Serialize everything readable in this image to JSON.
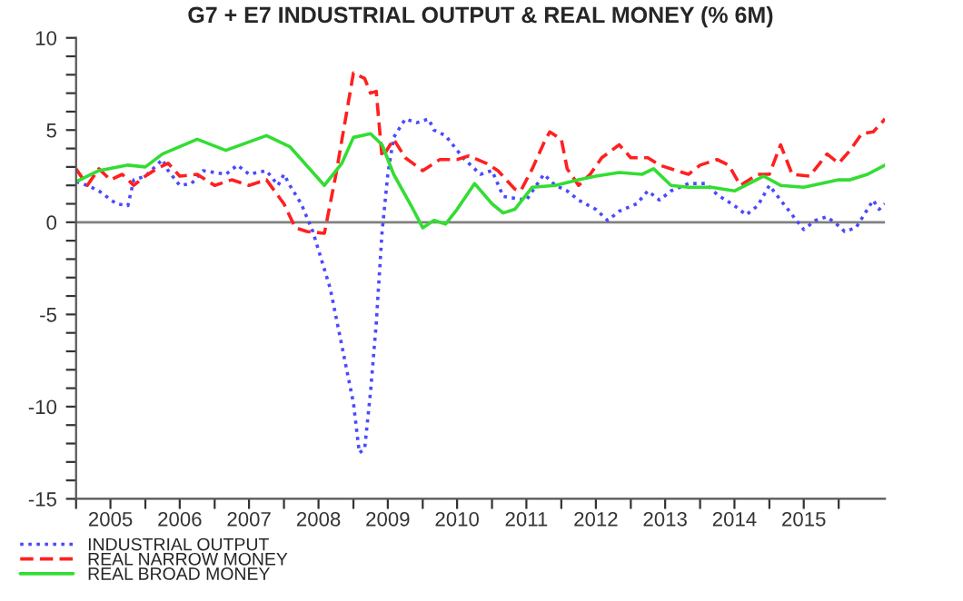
{
  "chart_data": {
    "type": "line",
    "title": "G7 + E7 INDUSTRIAL OUTPUT & REAL MONEY (% 6M)",
    "xlim": [
      "2005-01",
      "2016-09"
    ],
    "ylim": [
      -15,
      10
    ],
    "xticks": [
      {
        "value": "2005-01",
        "label": null
      },
      {
        "value": "2005-07",
        "label": "2005"
      },
      {
        "value": "2006-01",
        "label": null
      },
      {
        "value": "2006-07",
        "label": "2006"
      },
      {
        "value": "2007-01",
        "label": null
      },
      {
        "value": "2007-07",
        "label": "2007"
      },
      {
        "value": "2008-01",
        "label": null
      },
      {
        "value": "2008-07",
        "label": "2008"
      },
      {
        "value": "2009-01",
        "label": null
      },
      {
        "value": "2009-07",
        "label": "2009"
      },
      {
        "value": "2010-01",
        "label": null
      },
      {
        "value": "2010-07",
        "label": "2010"
      },
      {
        "value": "2011-01",
        "label": null
      },
      {
        "value": "2011-07",
        "label": "2011"
      },
      {
        "value": "2012-01",
        "label": null
      },
      {
        "value": "2012-07",
        "label": "2012"
      },
      {
        "value": "2013-01",
        "label": null
      },
      {
        "value": "2013-07",
        "label": "2013"
      },
      {
        "value": "2014-01",
        "label": null
      },
      {
        "value": "2014-07",
        "label": "2014"
      },
      {
        "value": "2015-01",
        "label": null
      },
      {
        "value": "2015-07",
        "label": "2015"
      },
      {
        "value": "2016-01",
        "label": null
      }
    ],
    "yticks": [
      -15,
      {
        "value": -14,
        "label": null
      },
      {
        "value": -13,
        "label": null
      },
      {
        "value": -12,
        "label": null
      },
      {
        "value": -11,
        "label": null
      },
      -10,
      {
        "value": -9,
        "label": null
      },
      {
        "value": -8,
        "label": null
      },
      {
        "value": -7,
        "label": null
      },
      {
        "value": -6,
        "label": null
      },
      -5,
      {
        "value": -4,
        "label": null
      },
      {
        "value": -3,
        "label": null
      },
      {
        "value": -2,
        "label": null
      },
      {
        "value": -1,
        "label": null
      },
      0,
      {
        "value": 1,
        "label": null
      },
      {
        "value": 2,
        "label": null
      },
      {
        "value": 3,
        "label": null
      },
      {
        "value": 4,
        "label": null
      },
      5,
      {
        "value": 6,
        "label": null
      },
      {
        "value": 7,
        "label": null
      },
      {
        "value": 8,
        "label": null
      },
      {
        "value": 9,
        "label": null
      },
      10
    ],
    "grid": false,
    "legend": "bottom left",
    "ref_lines": [
      {
        "axis": "y",
        "value": 0,
        "color": "#808080"
      }
    ],
    "series": [
      {
        "name": "INDUSTRIAL OUTPUT",
        "color": "#4a4aff",
        "line_style": "dotted",
        "x": [
          "2005-01",
          "2005-03",
          "2005-05",
          "2005-08",
          "2005-10",
          "2005-11",
          "2006-01",
          "2006-04",
          "2006-05",
          "2006-07",
          "2006-09",
          "2006-11",
          "2007-03",
          "2007-05",
          "2007-07",
          "2007-10",
          "2007-12",
          "2008-01",
          "2008-02",
          "2008-04",
          "2008-06",
          "2008-09",
          "2008-11",
          "2009-01",
          "2009-02",
          "2009-03",
          "2009-04",
          "2009-05",
          "2009-06",
          "2009-07",
          "2009-08",
          "2009-10",
          "2009-12",
          "2010-02",
          "2010-03",
          "2010-05",
          "2010-08",
          "2010-10",
          "2010-11",
          "2011-01",
          "2011-03",
          "2011-07",
          "2011-10",
          "2011-12",
          "2012-02",
          "2012-04",
          "2012-07",
          "2012-09",
          "2012-11",
          "2013-02",
          "2013-04",
          "2013-06",
          "2013-08",
          "2013-11",
          "2014-02",
          "2014-04",
          "2014-07",
          "2014-09",
          "2014-11",
          "2015-01",
          "2015-03",
          "2015-05",
          "2015-07",
          "2015-09",
          "2015-11",
          "2016-01",
          "2016-02",
          "2016-04",
          "2016-07",
          "2016-08",
          "2016-09"
        ],
        "values": [
          2.2,
          2.0,
          1.7,
          1.0,
          0.9,
          2.3,
          2.5,
          3.4,
          2.8,
          2.0,
          2.1,
          2.8,
          2.6,
          3.1,
          2.6,
          2.8,
          2.0,
          2.6,
          2.0,
          1.0,
          -0.5,
          -3.6,
          -6.7,
          -9.8,
          -12.5,
          -12.3,
          -9.2,
          -5.5,
          -0.5,
          2.6,
          4.6,
          5.6,
          5.4,
          5.6,
          5.0,
          4.7,
          3.5,
          2.9,
          2.6,
          2.8,
          1.4,
          1.2,
          2.6,
          2.0,
          1.7,
          1.2,
          0.7,
          0.1,
          0.6,
          1.0,
          1.7,
          1.2,
          1.7,
          2.1,
          2.1,
          1.5,
          0.9,
          0.4,
          0.9,
          2.0,
          1.2,
          0.4,
          -0.4,
          0.1,
          0.3,
          -0.2,
          -0.5,
          -0.3,
          1.2,
          0.7,
          1.0
        ]
      },
      {
        "name": "REAL NARROW MONEY",
        "color": "#ff2020",
        "line_style": "dashed",
        "x": [
          "2005-01",
          "2005-03",
          "2005-05",
          "2005-07",
          "2005-09",
          "2005-11",
          "2006-01",
          "2006-03",
          "2006-05",
          "2006-07",
          "2006-10",
          "2007-01",
          "2007-04",
          "2007-07",
          "2007-10",
          "2008-01",
          "2008-03",
          "2008-05",
          "2008-08",
          "2008-10",
          "2009-01",
          "2009-03",
          "2009-04",
          "2009-05",
          "2009-06",
          "2009-08",
          "2009-10",
          "2010-01",
          "2010-04",
          "2010-07",
          "2010-09",
          "2010-12",
          "2011-02",
          "2011-05",
          "2011-06",
          "2011-08",
          "2011-10",
          "2011-11",
          "2012-01",
          "2012-02",
          "2012-04",
          "2012-06",
          "2012-08",
          "2012-11",
          "2013-01",
          "2013-04",
          "2013-06",
          "2013-08",
          "2013-11",
          "2014-01",
          "2014-04",
          "2014-06",
          "2014-08",
          "2014-11",
          "2015-01",
          "2015-03",
          "2015-05",
          "2015-08",
          "2015-11",
          "2016-01",
          "2016-03",
          "2016-05",
          "2016-07",
          "2016-09"
        ],
        "values": [
          2.9,
          2.0,
          2.9,
          2.3,
          2.6,
          2.0,
          2.5,
          2.9,
          3.2,
          2.5,
          2.6,
          2.0,
          2.3,
          2.0,
          2.3,
          1.0,
          -0.3,
          -0.5,
          -0.6,
          2.6,
          8.1,
          7.8,
          7.0,
          7.1,
          3.5,
          4.5,
          3.5,
          2.8,
          3.4,
          3.4,
          3.6,
          3.2,
          2.8,
          1.8,
          1.7,
          2.9,
          4.3,
          4.9,
          4.5,
          2.9,
          2.0,
          2.6,
          3.5,
          4.2,
          3.5,
          3.5,
          3.1,
          2.9,
          2.6,
          3.1,
          3.4,
          3.1,
          2.0,
          2.6,
          2.6,
          4.2,
          2.6,
          2.5,
          3.7,
          3.2,
          3.9,
          4.8,
          4.9,
          5.6
        ]
      },
      {
        "name": "REAL BROAD MONEY",
        "color": "#33dd33",
        "line_style": "solid",
        "x": [
          "2005-01",
          "2005-05",
          "2005-10",
          "2006-01",
          "2006-04",
          "2006-10",
          "2007-03",
          "2007-10",
          "2008-02",
          "2008-08",
          "2008-11",
          "2009-01",
          "2009-04",
          "2009-06",
          "2009-08",
          "2009-11",
          "2010-01",
          "2010-03",
          "2010-05",
          "2010-07",
          "2010-10",
          "2011-01",
          "2011-03",
          "2011-05",
          "2011-08",
          "2011-12",
          "2012-04",
          "2012-07",
          "2012-11",
          "2013-03",
          "2013-05",
          "2013-08",
          "2013-11",
          "2014-03",
          "2014-07",
          "2014-12",
          "2015-03",
          "2015-07",
          "2016-01",
          "2016-03",
          "2016-06",
          "2016-09"
        ],
        "values": [
          2.2,
          2.8,
          3.1,
          3.0,
          3.7,
          4.5,
          3.9,
          4.7,
          4.1,
          2.0,
          3.2,
          4.6,
          4.8,
          4.2,
          2.6,
          0.9,
          -0.3,
          0.1,
          -0.1,
          0.7,
          2.1,
          1.0,
          0.5,
          0.7,
          1.9,
          2.0,
          2.3,
          2.5,
          2.7,
          2.6,
          2.9,
          2.0,
          1.9,
          1.9,
          1.7,
          2.5,
          2.0,
          1.9,
          2.3,
          2.3,
          2.6,
          3.1
        ]
      }
    ]
  }
}
